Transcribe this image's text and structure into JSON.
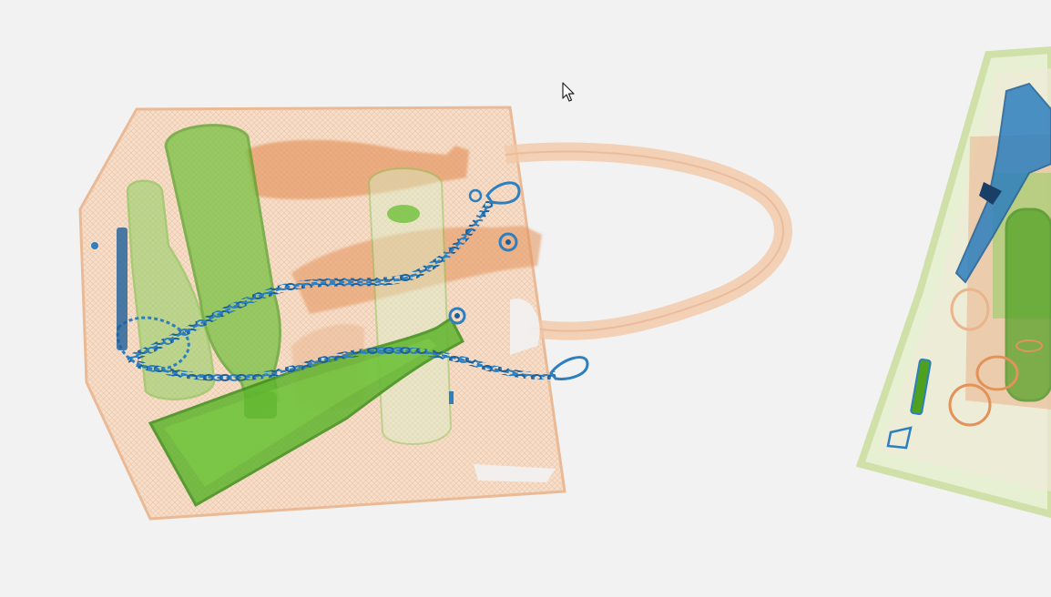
{
  "colors": {
    "background": "#f2f2f2",
    "organic": "#eab48d",
    "organic_dark": "#e3925a",
    "inorganic": "#6fc03a",
    "inorganic_dark": "#4ea021",
    "metal": "#2d7fbf",
    "metal_dark": "#1d5f9a",
    "right_bag_edge": "#cfe0a6"
  },
  "icons": {
    "cursor": "arrow-cursor-icon"
  }
}
